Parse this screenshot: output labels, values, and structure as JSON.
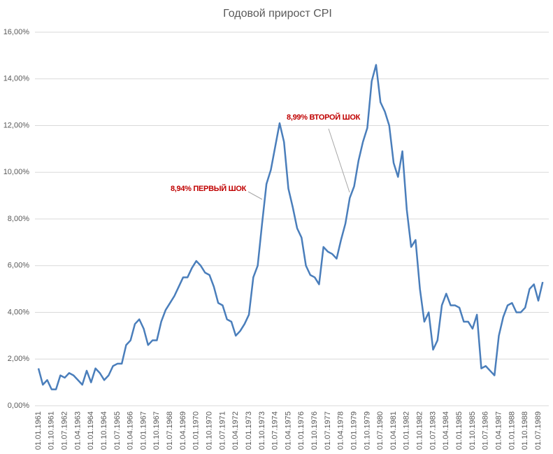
{
  "chart_data": {
    "type": "line",
    "title": "Годовой прирост CPI",
    "categories": [
      "01.01.1961",
      null,
      null,
      "01.10.1961",
      null,
      null,
      "01.07.1962",
      null,
      null,
      "01.04.1963",
      null,
      null,
      "01.01.1964",
      null,
      null,
      "01.10.1964",
      null,
      null,
      "01.07.1965",
      null,
      null,
      "01.04.1966",
      null,
      null,
      "01.01.1967",
      null,
      null,
      "01.10.1967",
      null,
      null,
      "01.07.1968",
      null,
      null,
      "01.04.1969",
      null,
      null,
      "01.01.1970",
      null,
      null,
      "01.10.1970",
      null,
      null,
      "01.07.1971",
      null,
      null,
      "01.04.1972",
      null,
      null,
      "01.01.1973",
      null,
      null,
      "01.10.1973",
      null,
      null,
      "01.07.1974",
      null,
      null,
      "01.04.1975",
      null,
      null,
      "01.01.1976",
      null,
      null,
      "01.10.1976",
      null,
      null,
      "01.07.1977",
      null,
      null,
      "01.04.1978",
      null,
      null,
      "01.01.1979",
      null,
      null,
      "01.10.1979",
      null,
      null,
      "01.07.1980",
      null,
      null,
      "01.04.1981",
      null,
      null,
      "01.01.1982",
      null,
      null,
      "01.10.1982",
      null,
      null,
      "01.07.1983",
      null,
      null,
      "01.04.1984",
      null,
      null,
      "01.01.1985",
      null,
      null,
      "01.10.1985",
      null,
      null,
      "01.07.1986",
      null,
      null,
      "01.04.1987",
      null,
      null,
      "01.01.1988",
      null,
      null,
      "01.10.1988",
      null,
      null,
      "01.07.1989",
      null
    ],
    "series": [
      {
        "color": "#4a7ebb",
        "values": [
          1.6,
          0.9,
          1.1,
          0.7,
          0.7,
          1.3,
          1.2,
          1.4,
          1.3,
          1.1,
          0.9,
          1.5,
          1.0,
          1.6,
          1.4,
          1.1,
          1.3,
          1.7,
          1.8,
          1.8,
          2.6,
          2.8,
          3.5,
          3.7,
          3.3,
          2.6,
          2.8,
          2.8,
          3.6,
          4.1,
          4.4,
          4.7,
          5.1,
          5.5,
          5.5,
          5.9,
          6.2,
          6.0,
          5.7,
          5.6,
          5.1,
          4.4,
          4.3,
          3.7,
          3.6,
          3.0,
          3.2,
          3.5,
          3.9,
          5.5,
          6.0,
          7.8,
          9.5,
          10.1,
          11.1,
          12.1,
          11.3,
          9.3,
          8.5,
          7.6,
          7.2,
          6.0,
          5.6,
          5.5,
          5.2,
          6.8,
          6.6,
          6.5,
          6.3,
          7.1,
          7.8,
          8.9,
          9.4,
          10.5,
          11.3,
          11.9,
          13.9,
          14.6,
          13.0,
          12.6,
          12.0,
          10.4,
          9.8,
          10.9,
          8.4,
          6.8,
          7.1,
          5.0,
          3.6,
          4.0,
          2.4,
          2.8,
          4.3,
          4.8,
          4.3,
          4.3,
          4.2,
          3.6,
          3.6,
          3.3,
          3.9,
          1.6,
          1.7,
          1.5,
          1.3,
          3.0,
          3.8,
          4.3,
          4.4,
          4.0,
          4.0,
          4.2,
          5.0,
          5.2,
          4.5,
          5.3
        ]
      }
    ],
    "ylim": [
      0,
      16
    ],
    "yticks": [
      {
        "value": 0,
        "label": "0,00%"
      },
      {
        "value": 2,
        "label": "2,00%"
      },
      {
        "value": 4,
        "label": "4,00%"
      },
      {
        "value": 6,
        "label": "6,00%"
      },
      {
        "value": 8,
        "label": "8,00%"
      },
      {
        "value": 10,
        "label": "10,00%"
      },
      {
        "value": 12,
        "label": "12,00%"
      },
      {
        "value": 14,
        "label": "14,00%"
      },
      {
        "value": 16,
        "label": "16,00%"
      }
    ],
    "grid": true,
    "annotations": [
      "8,94% ПЕРВЫЙ ШОК",
      "8,99% ВТОРОЙ ШОК"
    ]
  }
}
